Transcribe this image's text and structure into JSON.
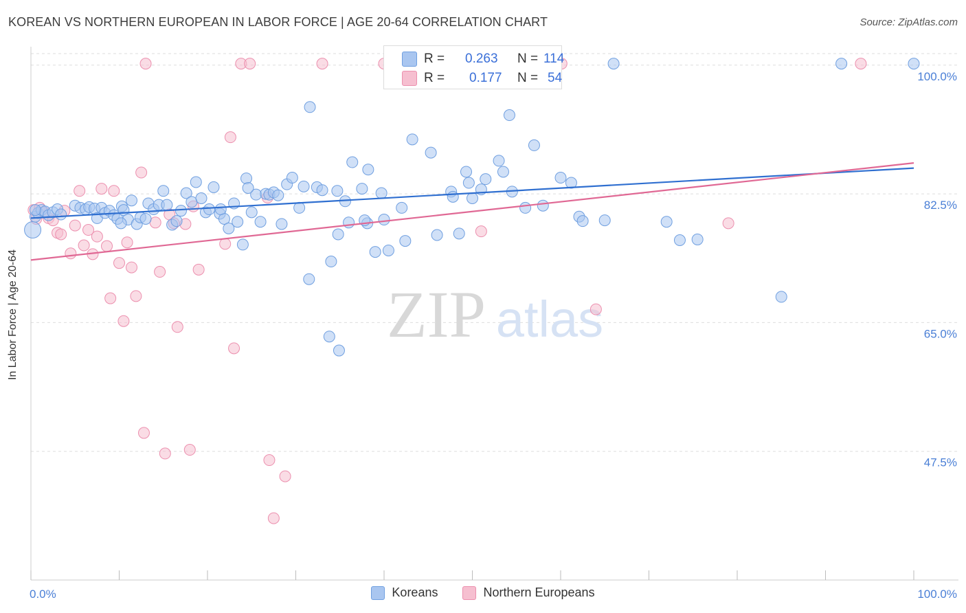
{
  "title": "KOREAN VS NORTHERN EUROPEAN IN LABOR FORCE | AGE 20-64 CORRELATION CHART",
  "source": "Source: ZipAtlas.com",
  "watermark": {
    "zip": "ZIP",
    "atlas": "atlas"
  },
  "legend": {
    "r_label": "R =",
    "n_label": "N =",
    "koreans": {
      "r": "0.263",
      "n": "114"
    },
    "northern": {
      "r": "0.177",
      "n": "54"
    }
  },
  "colors": {
    "koreans_fill": "#a9c6f0",
    "koreans_stroke": "#6f9fe0",
    "koreans_line": "#2f6fd0",
    "northern_fill": "#f6bfd0",
    "northern_stroke": "#ec8fae",
    "northern_line": "#e06894",
    "tick_text": "#4a7fd6",
    "grid": "#dddddd"
  },
  "chart_data": {
    "type": "scatter",
    "title": "KOREAN VS NORTHERN EUROPEAN IN LABOR FORCE | AGE 20-64 CORRELATION CHART",
    "xlabel": "",
    "ylabel": "In Labor Force | Age 20-64",
    "xlim": [
      0,
      100
    ],
    "ylim": [
      30,
      102.5
    ],
    "x_tick_labels": [
      "0.0%",
      "100.0%"
    ],
    "y_ticks": [
      {
        "value": 47.5,
        "label": "47.5%"
      },
      {
        "value": 65.0,
        "label": "65.0%"
      },
      {
        "value": 82.5,
        "label": "82.5%"
      },
      {
        "value": 100.0,
        "label": "100.0%"
      }
    ],
    "grid": true,
    "legend_placement": "bottom-center",
    "series": [
      {
        "name": "Koreans",
        "r": 0.263,
        "n": 114,
        "trend": {
          "x": [
            0,
            100
          ],
          "y": [
            79.2,
            86.0
          ]
        },
        "points": [
          [
            0.2,
            77.6
          ],
          [
            0.5,
            79.4
          ],
          [
            0.8,
            79.9
          ],
          [
            1.2,
            80.3
          ],
          [
            1.6,
            80.1
          ],
          [
            2.0,
            79.6
          ],
          [
            2.5,
            80.0
          ],
          [
            3.0,
            80.4
          ],
          [
            3.4,
            79.7
          ],
          [
            5.0,
            80.9
          ],
          [
            5.6,
            80.6
          ],
          [
            6.2,
            80.4
          ],
          [
            6.6,
            80.7
          ],
          [
            7.2,
            80.5
          ],
          [
            7.5,
            79.2
          ],
          [
            8.0,
            80.6
          ],
          [
            8.4,
            79.9
          ],
          [
            8.9,
            80.2
          ],
          [
            9.4,
            79.6
          ],
          [
            9.8,
            79.1
          ],
          [
            10.3,
            80.8
          ],
          [
            10.5,
            80.3
          ],
          [
            11.0,
            79.0
          ],
          [
            11.4,
            81.6
          ],
          [
            12.0,
            78.4
          ],
          [
            12.4,
            79.3
          ],
          [
            13.0,
            79.1
          ],
          [
            13.3,
            81.2
          ],
          [
            13.9,
            80.4
          ],
          [
            14.5,
            81.0
          ],
          [
            15.0,
            82.9
          ],
          [
            15.4,
            81.0
          ],
          [
            16.0,
            78.3
          ],
          [
            16.5,
            78.8
          ],
          [
            17.0,
            80.2
          ],
          [
            17.6,
            82.6
          ],
          [
            18.2,
            81.4
          ],
          [
            18.7,
            84.1
          ],
          [
            19.3,
            81.9
          ],
          [
            19.8,
            80.0
          ],
          [
            20.2,
            80.4
          ],
          [
            20.7,
            83.4
          ],
          [
            21.4,
            79.8
          ],
          [
            21.9,
            79.1
          ],
          [
            22.4,
            77.8
          ],
          [
            23.0,
            81.2
          ],
          [
            23.4,
            78.7
          ],
          [
            24.0,
            75.6
          ],
          [
            24.4,
            84.6
          ],
          [
            25.0,
            80.0
          ],
          [
            25.5,
            82.4
          ],
          [
            26.0,
            78.7
          ],
          [
            26.6,
            82.5
          ],
          [
            27.0,
            82.4
          ],
          [
            27.5,
            82.7
          ],
          [
            28.0,
            82.3
          ],
          [
            28.4,
            78.4
          ],
          [
            29.0,
            83.8
          ],
          [
            29.6,
            84.7
          ],
          [
            30.4,
            80.6
          ],
          [
            30.9,
            83.5
          ],
          [
            31.5,
            70.9
          ],
          [
            31.6,
            94.3
          ],
          [
            32.4,
            83.4
          ],
          [
            33.0,
            83.0
          ],
          [
            33.8,
            63.1
          ],
          [
            34.7,
            82.9
          ],
          [
            34.9,
            61.2
          ],
          [
            34.0,
            73.3
          ],
          [
            34.8,
            77.0
          ],
          [
            35.6,
            81.5
          ],
          [
            36.0,
            78.6
          ],
          [
            36.4,
            86.8
          ],
          [
            37.5,
            83.2
          ],
          [
            38.1,
            78.5
          ],
          [
            38.2,
            85.8
          ],
          [
            39.0,
            74.6
          ],
          [
            39.7,
            82.6
          ],
          [
            40.0,
            79.0
          ],
          [
            40.5,
            74.8
          ],
          [
            42.0,
            80.6
          ],
          [
            42.4,
            76.1
          ],
          [
            43.2,
            89.9
          ],
          [
            45.3,
            88.1
          ],
          [
            46.0,
            76.9
          ],
          [
            47.6,
            82.8
          ],
          [
            47.8,
            82.1
          ],
          [
            48.5,
            77.1
          ],
          [
            49.3,
            85.5
          ],
          [
            49.6,
            84.0
          ],
          [
            50.0,
            81.9
          ],
          [
            51.0,
            83.1
          ],
          [
            51.5,
            84.5
          ],
          [
            53.0,
            87.0
          ],
          [
            53.5,
            85.5
          ],
          [
            54.2,
            93.2
          ],
          [
            54.5,
            82.8
          ],
          [
            57.0,
            89.1
          ],
          [
            58.0,
            80.9
          ],
          [
            60.0,
            84.7
          ],
          [
            61.2,
            84.0
          ],
          [
            62.1,
            79.4
          ],
          [
            62.5,
            78.8
          ],
          [
            65.0,
            78.9
          ],
          [
            66.0,
            100.2
          ],
          [
            72.0,
            78.7
          ],
          [
            73.5,
            76.2
          ],
          [
            75.5,
            76.3
          ],
          [
            85.0,
            68.5
          ],
          [
            91.8,
            100.2
          ],
          [
            100.0,
            100.2
          ],
          [
            0.5,
            80.3
          ],
          [
            21.5,
            80.4
          ],
          [
            10.2,
            78.5
          ],
          [
            37.8,
            78.9
          ],
          [
            56.0,
            80.6
          ],
          [
            24.6,
            83.3
          ]
        ]
      },
      {
        "name": "Northern Europeans",
        "r": 0.177,
        "n": 54,
        "trend": {
          "x": [
            0,
            100
          ],
          "y": [
            73.5,
            86.7
          ]
        },
        "points": [
          [
            0.3,
            80.3
          ],
          [
            0.6,
            79.1
          ],
          [
            1.0,
            80.6
          ],
          [
            1.5,
            80.0
          ],
          [
            2.0,
            79.2
          ],
          [
            2.5,
            78.9
          ],
          [
            3.0,
            77.2
          ],
          [
            3.4,
            77.0
          ],
          [
            3.8,
            80.2
          ],
          [
            4.5,
            74.4
          ],
          [
            5.0,
            78.2
          ],
          [
            5.5,
            82.9
          ],
          [
            6.0,
            75.5
          ],
          [
            6.5,
            77.6
          ],
          [
            7.0,
            74.3
          ],
          [
            7.5,
            76.7
          ],
          [
            8.0,
            83.2
          ],
          [
            8.6,
            75.4
          ],
          [
            9.0,
            68.3
          ],
          [
            9.4,
            82.9
          ],
          [
            10.0,
            73.1
          ],
          [
            10.5,
            65.2
          ],
          [
            10.9,
            75.9
          ],
          [
            11.4,
            72.5
          ],
          [
            11.9,
            68.6
          ],
          [
            12.5,
            85.4
          ],
          [
            12.8,
            50.0
          ],
          [
            13.0,
            100.2
          ],
          [
            14.1,
            78.6
          ],
          [
            14.6,
            71.9
          ],
          [
            15.2,
            47.2
          ],
          [
            15.7,
            79.7
          ],
          [
            16.2,
            78.5
          ],
          [
            16.6,
            64.4
          ],
          [
            17.5,
            78.4
          ],
          [
            18.0,
            47.7
          ],
          [
            18.4,
            80.8
          ],
          [
            19.0,
            72.2
          ],
          [
            22.0,
            75.7
          ],
          [
            22.6,
            90.2
          ],
          [
            23.0,
            61.5
          ],
          [
            23.8,
            100.2
          ],
          [
            24.8,
            100.2
          ],
          [
            26.8,
            82.0
          ],
          [
            27.0,
            46.3
          ],
          [
            27.5,
            38.4
          ],
          [
            28.8,
            44.1
          ],
          [
            33.0,
            100.2
          ],
          [
            40.0,
            100.2
          ],
          [
            60.1,
            100.2
          ],
          [
            64.0,
            66.8
          ],
          [
            94.0,
            100.2
          ],
          [
            79.0,
            78.5
          ],
          [
            51.0,
            77.4
          ]
        ]
      }
    ]
  }
}
